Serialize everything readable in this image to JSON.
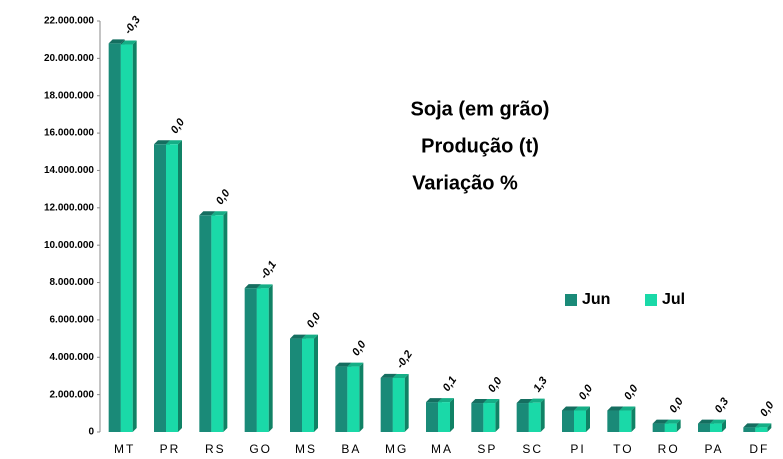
{
  "chart_data": {
    "type": "bar",
    "title": [
      "Soja (em grão)",
      "Produção (t)",
      "Variação %"
    ],
    "categories": [
      "MT",
      "PR",
      "RS",
      "GO",
      "MS",
      "BA",
      "MG",
      "MA",
      "SP",
      "SC",
      "PI",
      "TO",
      "RO",
      "PA",
      "DF"
    ],
    "series": [
      {
        "name": "Jun",
        "color": "#1a8a78",
        "values": [
          20800000,
          15400000,
          11600000,
          7700000,
          5000000,
          3500000,
          2900000,
          1600000,
          1550000,
          1550000,
          1150000,
          1150000,
          450000,
          450000,
          250000
        ]
      },
      {
        "name": "Jul",
        "color": "#1ad9a8",
        "values": [
          20740000,
          15400000,
          11600000,
          7690000,
          5000000,
          3500000,
          2890000,
          1600000,
          1550000,
          1570000,
          1150000,
          1150000,
          450000,
          450000,
          250000
        ]
      }
    ],
    "variation": {
      "values": [
        -0.3,
        0.0,
        0.0,
        -0.1,
        0.0,
        0.0,
        -0.2,
        0.1,
        0.0,
        1.3,
        0.0,
        0.0,
        0.0,
        0.3,
        0.0
      ],
      "value_labels": [
        "-0,3",
        "0,0",
        "0,0",
        "-0,1",
        "0,0",
        "0,0",
        "-0,2",
        "0,1",
        "0,0",
        "1,3",
        "0,0",
        "0,0",
        "0,0",
        "0,3",
        "0,0"
      ]
    },
    "ylim": [
      0,
      22000000
    ],
    "yticks": [
      0,
      {
        "value": 2000000,
        "label": "2.000.000"
      },
      {
        "value": 4000000,
        "label": "4.000.000"
      },
      {
        "value": 6000000,
        "label": "6.000.000"
      },
      {
        "value": 8000000,
        "label": "8.000.000"
      },
      {
        "value": 10000000,
        "label": "10.000.000"
      },
      {
        "value": 12000000,
        "label": "12.000.000"
      },
      {
        "value": 14000000,
        "label": "14.000.000"
      },
      {
        "value": 16000000,
        "label": "16.000.000"
      },
      {
        "value": 18000000,
        "label": "18.000.000"
      },
      {
        "value": 20000000,
        "label": "20.000.000"
      },
      {
        "value": 22000000,
        "label": "22.000.000"
      }
    ],
    "grid": false,
    "legend": "right"
  }
}
